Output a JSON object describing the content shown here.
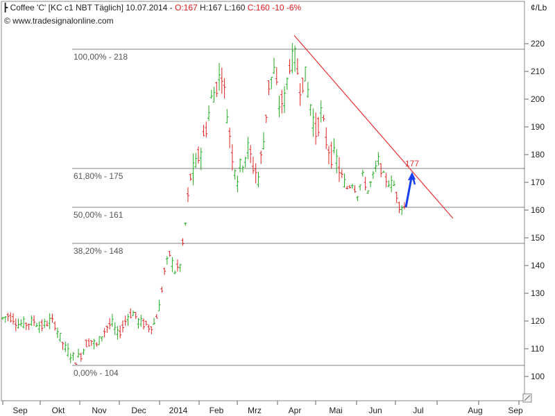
{
  "header": {
    "instrument": "Coffee 'C' [KC c1 NBT  Täglich]",
    "date": "10.07.2014",
    "separator": "-",
    "open": "O:167",
    "high": "H:167",
    "low": "L:160",
    "change": "C:160 -10 -6%",
    "copyright": "© www.tradesignalonline.com",
    "unit": "¢/Lb"
  },
  "colors": {
    "up": "#22aa22",
    "down": "#dd2222",
    "trendline": "#e83030",
    "arrow": "#1a3ff0",
    "fib_line": "#555555",
    "fib_label": "#555555",
    "header_black": "#222222",
    "header_red": "#d81a1a"
  },
  "chart_data": {
    "type": "bar",
    "subtype": "ohlc",
    "xlabels": [
      "Sep",
      "Okt",
      "Nov",
      "Dec",
      "2014",
      "Feb",
      "Mrz",
      "Apr",
      "Mai",
      "Jun",
      "Jul",
      "Aug",
      "Sep"
    ],
    "y_ticks": [
      100,
      110,
      120,
      130,
      140,
      150,
      160,
      170,
      180,
      190,
      200,
      210,
      220
    ],
    "ylim": [
      95,
      223
    ],
    "fib_levels": [
      {
        "label": "100,00% - 218",
        "value": 218
      },
      {
        "label": "61,80% - 175",
        "value": 175
      },
      {
        "label": "50,00% - 161",
        "value": 161
      },
      {
        "label": "38,20% - 148",
        "value": 148
      },
      {
        "label": "0,00% - 104",
        "value": 104
      }
    ],
    "trendline_label": "177",
    "trendline": {
      "start_value": 223,
      "end_value": 157
    },
    "arrow": {
      "from": 161,
      "to": 173
    },
    "price_points": [
      [
        0,
        121
      ],
      [
        2,
        122
      ],
      [
        4,
        121
      ],
      [
        6,
        119
      ],
      [
        9,
        119
      ],
      [
        12,
        120
      ],
      [
        15,
        118
      ],
      [
        18,
        120
      ],
      [
        20,
        119
      ],
      [
        22,
        114
      ],
      [
        24,
        110
      ],
      [
        26,
        108
      ],
      [
        28,
        106
      ],
      [
        30,
        108
      ],
      [
        32,
        112
      ],
      [
        34,
        113
      ],
      [
        36,
        111
      ],
      [
        38,
        115
      ],
      [
        40,
        118
      ],
      [
        42,
        119
      ],
      [
        44,
        115
      ],
      [
        46,
        118
      ],
      [
        48,
        122
      ],
      [
        50,
        123
      ],
      [
        52,
        120
      ],
      [
        54,
        119
      ],
      [
        56,
        118
      ],
      [
        58,
        119
      ],
      [
        60,
        125
      ],
      [
        62,
        138
      ],
      [
        64,
        144
      ],
      [
        66,
        138
      ],
      [
        68,
        140
      ],
      [
        70,
        155
      ],
      [
        72,
        172
      ],
      [
        74,
        176
      ],
      [
        76,
        182
      ],
      [
        78,
        190
      ],
      [
        80,
        200
      ],
      [
        82,
        205
      ],
      [
        84,
        210
      ],
      [
        86,
        195
      ],
      [
        88,
        180
      ],
      [
        90,
        172
      ],
      [
        92,
        178
      ],
      [
        94,
        182
      ],
      [
        96,
        176
      ],
      [
        98,
        172
      ],
      [
        100,
        185
      ],
      [
        102,
        205
      ],
      [
        104,
        210
      ],
      [
        106,
        198
      ],
      [
        108,
        200
      ],
      [
        110,
        213
      ],
      [
        112,
        215
      ],
      [
        114,
        205
      ],
      [
        116,
        208
      ],
      [
        118,
        198
      ],
      [
        120,
        188
      ],
      [
        122,
        195
      ],
      [
        124,
        185
      ],
      [
        126,
        180
      ],
      [
        128,
        178
      ],
      [
        130,
        172
      ],
      [
        132,
        168
      ],
      [
        134,
        170
      ],
      [
        136,
        166
      ],
      [
        138,
        172
      ],
      [
        140,
        167
      ],
      [
        142,
        172
      ],
      [
        144,
        178
      ],
      [
        146,
        172
      ],
      [
        148,
        170
      ],
      [
        150,
        169
      ],
      [
        152,
        162
      ],
      [
        154,
        161
      ]
    ]
  }
}
